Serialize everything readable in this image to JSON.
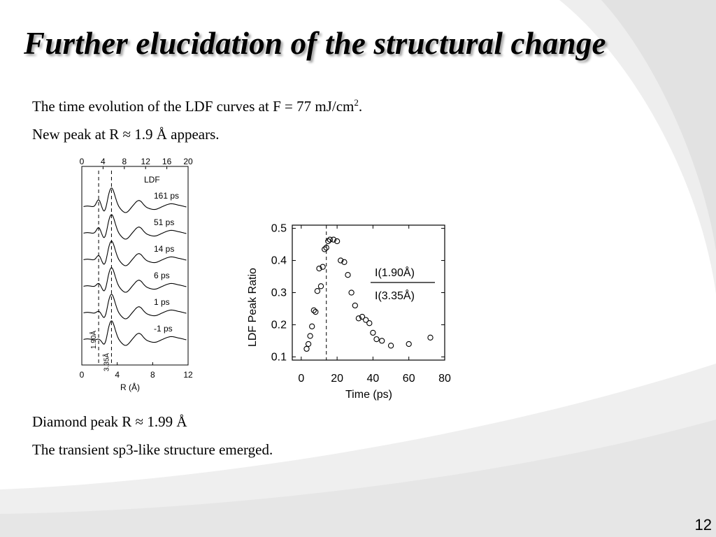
{
  "slide": {
    "title": "Further elucidation of the structural change",
    "line1_text": "The time evolution of the LDF curves  at F = 77 mJ/cm",
    "line1_sup": "2",
    "line1_end": ".",
    "line2": "New peak at R ≈ 1.9 Å appears.",
    "line3": "Diamond peak R ≈ 1.99 Å",
    "line4": "The transient sp3-like structure emerged.",
    "page_number": "12"
  },
  "colors": {
    "text": "#000000",
    "swoosh": "#e8e8e8"
  },
  "chart_data": [
    {
      "type": "line",
      "panel_label": "LDF",
      "xlabel": "R (Å)",
      "xlim": [
        0,
        12
      ],
      "x_ticks_bottom": [
        "0",
        "4",
        "8",
        "12"
      ],
      "x_ticks_top": [
        "0",
        "4",
        "8",
        "12",
        "16",
        "20"
      ],
      "reference_lines": [
        {
          "x": 1.9,
          "label": "1.90Å"
        },
        {
          "x": 3.35,
          "label": "3.35Å"
        }
      ],
      "series": [
        {
          "name": "161 ps"
        },
        {
          "name": "51 ps"
        },
        {
          "name": "14 ps"
        },
        {
          "name": "6 ps"
        },
        {
          "name": "1 ps"
        },
        {
          "name": "-1 ps"
        }
      ]
    },
    {
      "type": "scatter",
      "xlabel": "Time (ps)",
      "ylabel": "LDF Peak Ratio",
      "xlim": [
        -5,
        80
      ],
      "ylim": [
        0.09,
        0.51
      ],
      "x_ticks": [
        "0",
        "20",
        "40",
        "60",
        "80"
      ],
      "y_ticks": [
        "0.1",
        "0.2",
        "0.3",
        "0.4",
        "0.5"
      ],
      "annotation_numerator": "I(1.90Å)",
      "annotation_denominator": "I(3.35Å)",
      "reference_line_x": 14,
      "x": [
        3,
        4,
        5,
        6,
        7,
        8,
        9,
        10,
        11,
        12,
        13,
        14,
        15,
        16,
        18,
        20,
        22,
        24,
        26,
        28,
        30,
        32,
        34,
        36,
        38,
        40,
        42,
        45,
        50,
        60,
        72
      ],
      "y": [
        0.125,
        0.14,
        0.165,
        0.195,
        0.245,
        0.24,
        0.305,
        0.375,
        0.32,
        0.38,
        0.435,
        0.44,
        0.46,
        0.465,
        0.465,
        0.46,
        0.4,
        0.395,
        0.355,
        0.3,
        0.26,
        0.22,
        0.225,
        0.215,
        0.205,
        0.175,
        0.155,
        0.15,
        0.135,
        0.14,
        0.16
      ]
    }
  ]
}
